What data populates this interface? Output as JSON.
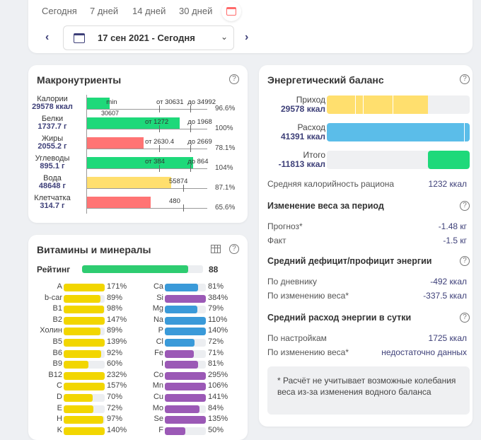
{
  "periods": [
    "Сегодня",
    "7 дней",
    "14 дней",
    "30 дней"
  ],
  "date_range": "17 сен 2021 - Сегодня",
  "macro": {
    "title": "Макронутриенты",
    "rows": [
      {
        "name": "Калории",
        "value": "29578 ккал",
        "fill": 19,
        "color": "#1ed97a",
        "labels": [
          {
            "t": "min",
            "at": 16
          },
          {
            "t": "от 30631",
            "at": 60
          },
          {
            "t": "до 34992",
            "at": 86
          }
        ],
        "ticks": [
          60,
          86
        ],
        "below": "30607",
        "pct": "96.6%"
      },
      {
        "name": "Белки",
        "value": "1737.7 г",
        "fill": 77,
        "color": "#1ed97a",
        "labels": [
          {
            "t": "от 1272",
            "at": 60
          },
          {
            "t": "до 1968",
            "at": 86
          }
        ],
        "ticks": [
          60,
          86
        ],
        "pct": "100%"
      },
      {
        "name": "Жиры",
        "value": "2055.2 г",
        "fill": 47,
        "color": "#ff7474",
        "labels": [
          {
            "t": "от 2630.4",
            "at": 60
          },
          {
            "t": "до 2669",
            "at": 86
          }
        ],
        "ticks": [
          60,
          86
        ],
        "pct": "78.1%"
      },
      {
        "name": "Углеводы",
        "value": "895.1 г",
        "fill": 88,
        "color": "#1ed97a",
        "labels": [
          {
            "t": "от 384",
            "at": 60
          },
          {
            "t": "до 864",
            "at": 86
          }
        ],
        "ticks": [
          60,
          86
        ],
        "pct": "104%"
      },
      {
        "name": "Вода",
        "value": "48648 г",
        "fill": 70,
        "color": "#ffdf6e",
        "labels": [
          {
            "t": "55874",
            "at": 80
          }
        ],
        "ticks": [
          80
        ],
        "pct": "87.1%"
      },
      {
        "name": "Клетчатка",
        "value": "314.7 г",
        "fill": 53,
        "color": "#ff7474",
        "labels": [
          {
            "t": "480",
            "at": 80
          }
        ],
        "ticks": [
          80
        ],
        "pct": "65.6%"
      }
    ]
  },
  "vitamins": {
    "title": "Витамины и минералы",
    "rating_label": "Рейтинг",
    "rating": "88",
    "rating_fill": 88,
    "left": [
      {
        "n": "A",
        "p": "171%",
        "f": 100
      },
      {
        "n": "b-car",
        "p": "89%",
        "f": 89
      },
      {
        "n": "B1",
        "p": "98%",
        "f": 98
      },
      {
        "n": "B2",
        "p": "147%",
        "f": 100
      },
      {
        "n": "Холин",
        "p": "89%",
        "f": 89
      },
      {
        "n": "B5",
        "p": "139%",
        "f": 100
      },
      {
        "n": "B6",
        "p": "92%",
        "f": 92
      },
      {
        "n": "B9",
        "p": "60%",
        "f": 60
      },
      {
        "n": "B12",
        "p": "232%",
        "f": 100
      },
      {
        "n": "C",
        "p": "157%",
        "f": 100
      },
      {
        "n": "D",
        "p": "70%",
        "f": 70
      },
      {
        "n": "E",
        "p": "72%",
        "f": 72
      },
      {
        "n": "H",
        "p": "97%",
        "f": 97
      },
      {
        "n": "K",
        "p": "140%",
        "f": 100
      }
    ],
    "right": [
      {
        "n": "Ca",
        "p": "81%",
        "f": 81,
        "c": "#3a9ad9"
      },
      {
        "n": "Si",
        "p": "384%",
        "f": 100,
        "c": "#9b59b6"
      },
      {
        "n": "Mg",
        "p": "79%",
        "f": 79,
        "c": "#3a9ad9"
      },
      {
        "n": "Na",
        "p": "110%",
        "f": 100,
        "c": "#3a9ad9"
      },
      {
        "n": "P",
        "p": "140%",
        "f": 100,
        "c": "#3a9ad9"
      },
      {
        "n": "Cl",
        "p": "72%",
        "f": 72,
        "c": "#3a9ad9"
      },
      {
        "n": "Fe",
        "p": "71%",
        "f": 71,
        "c": "#9b59b6"
      },
      {
        "n": "I",
        "p": "81%",
        "f": 81,
        "c": "#9b59b6"
      },
      {
        "n": "Co",
        "p": "295%",
        "f": 100,
        "c": "#9b59b6"
      },
      {
        "n": "Mn",
        "p": "106%",
        "f": 100,
        "c": "#9b59b6"
      },
      {
        "n": "Cu",
        "p": "141%",
        "f": 100,
        "c": "#9b59b6"
      },
      {
        "n": "Mo",
        "p": "84%",
        "f": 84,
        "c": "#9b59b6"
      },
      {
        "n": "Se",
        "p": "135%",
        "f": 100,
        "c": "#9b59b6"
      },
      {
        "n": "F",
        "p": "50%",
        "f": 50,
        "c": "#9b59b6"
      }
    ]
  },
  "energy": {
    "title": "Энергетический баланс",
    "income_label": "Приход",
    "income": "29578 ккал",
    "income_fill": 71,
    "expense_label": "Расход",
    "expense": "41391 ккал",
    "expense_fill": 100,
    "total_label": "Итого",
    "total": "-11813 ккал",
    "total_fill": 29,
    "avg_label": "Средняя калорийность рациона",
    "avg": "1232 ккал",
    "weight_title": "Изменение веса за период",
    "forecast_label": "Прогноз*",
    "forecast": "-1.48 кг",
    "fact_label": "Факт",
    "fact": "-1.5 кг",
    "deficit_title": "Средний дефицит/профицит энергии",
    "by_diary_label": "По дневнику",
    "by_diary": "-492 ккал",
    "by_weight_label": "По изменению веса*",
    "by_weight": "-337.5 ккал",
    "daily_title": "Средний расход энергии в сутки",
    "by_settings_label": "По настройкам",
    "by_settings": "1725 ккал",
    "by_weight2_label": "По изменению веса*",
    "by_weight2": "недостаточно данных",
    "note": "* Расчёт не учитывает возможные колебания веса из-за изменения водного баланса"
  },
  "colors": {
    "accent": "#3d3f78",
    "green": "#1ed97a",
    "red": "#ff7474",
    "yellow": "#ffdf6e",
    "blue": "#5bbde9"
  }
}
